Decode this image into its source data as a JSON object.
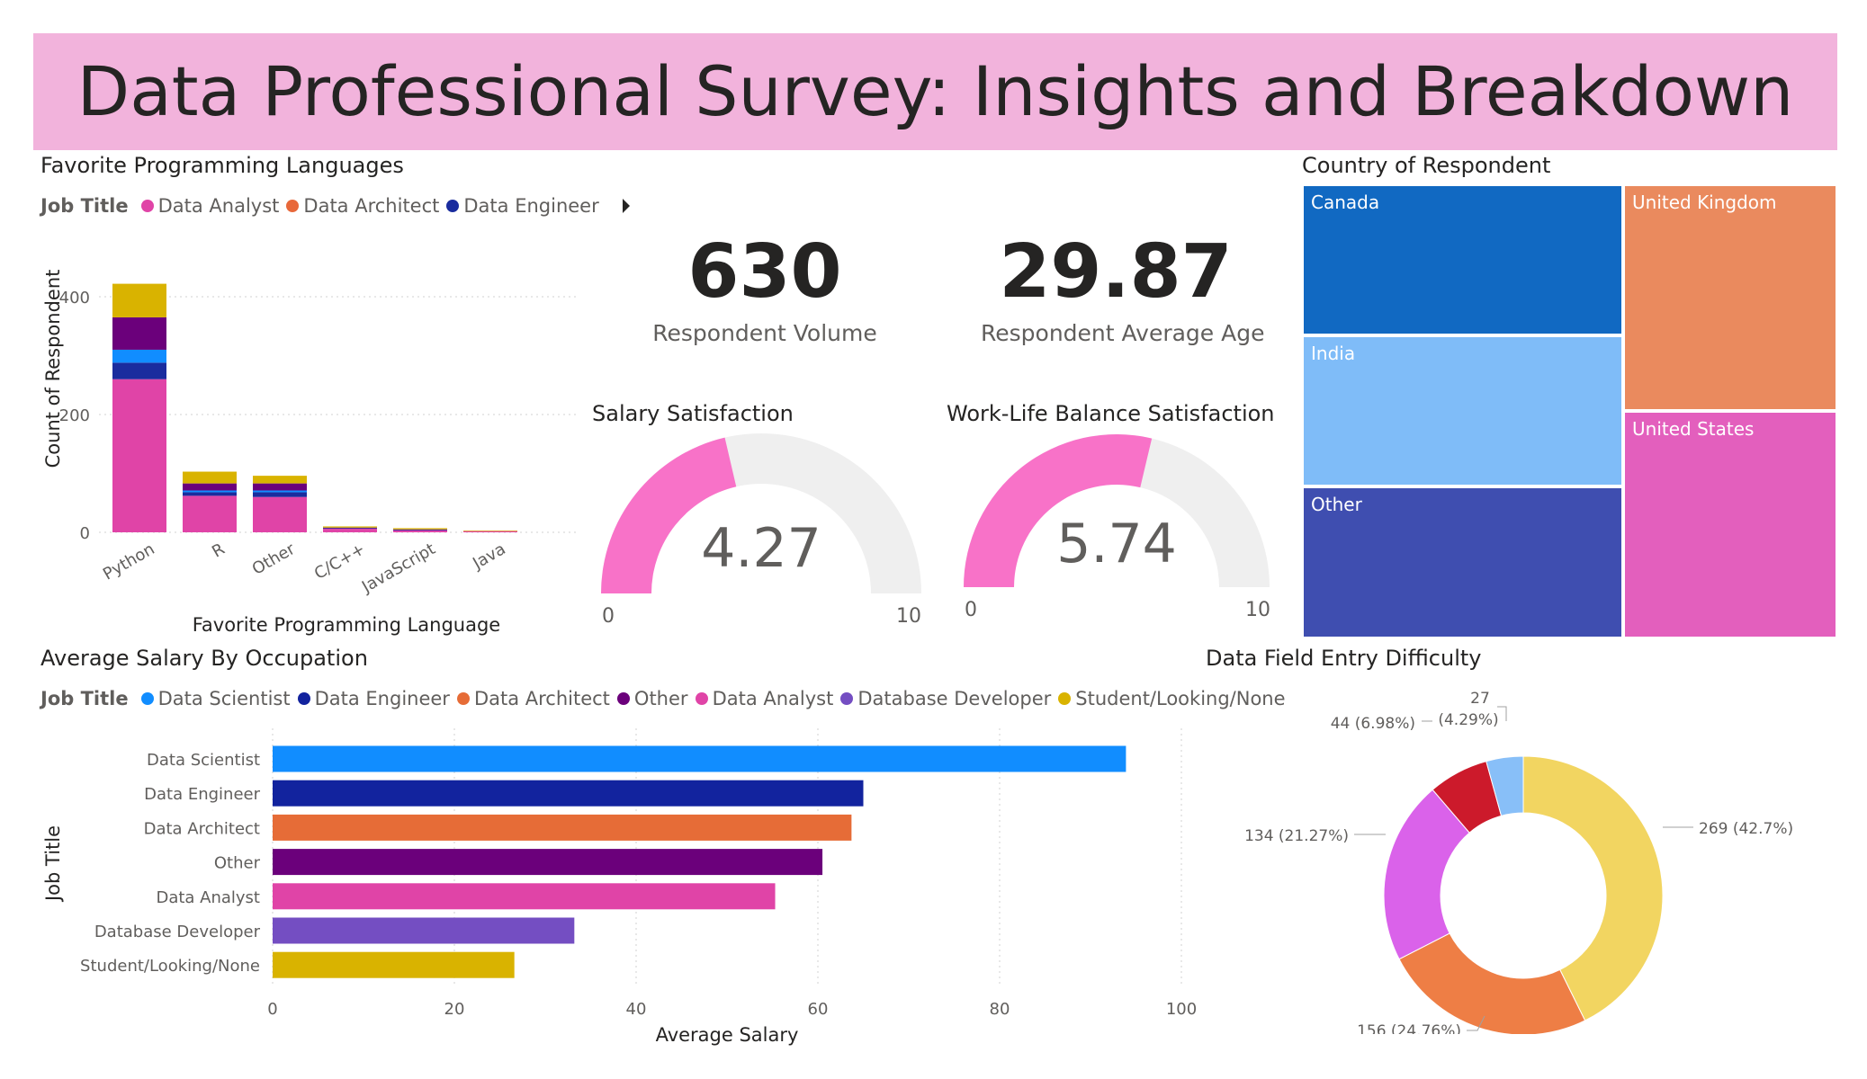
{
  "header": {
    "title": "Data Professional Survey: Insights and Breakdown"
  },
  "languages_visual": {
    "title": "Favorite Programming Languages",
    "legend_title": "Job Title",
    "legend_items": [
      {
        "label": "Data Analyst",
        "color": "#e044a7"
      },
      {
        "label": "Data Architect",
        "color": "#e8683a"
      },
      {
        "label": "Data Engineer",
        "color": "#1a2c9e"
      }
    ]
  },
  "kpis": {
    "volume": {
      "value": "630",
      "label": "Respondent Volume"
    },
    "age": {
      "value": "29.87",
      "label": "Respondent Average Age"
    }
  },
  "gauges": {
    "salary": {
      "title": "Salary Satisfaction",
      "value_text": "4.27",
      "min_text": "0",
      "max_text": "10"
    },
    "worklife": {
      "title": "Work-Life Balance Satisfaction",
      "value_text": "5.74",
      "min_text": "0",
      "max_text": "10"
    }
  },
  "treemap": {
    "title": "Country of Respondent",
    "cells": [
      {
        "label": "Canada",
        "color": "#1169c2"
      },
      {
        "label": "India",
        "color": "#7fbcf8"
      },
      {
        "label": "Other",
        "color": "#3f4eb0"
      },
      {
        "label": "United Kingdom",
        "color": "#ea8a5e"
      },
      {
        "label": "United States",
        "color": "#e35fbd"
      }
    ]
  },
  "salary_visual": {
    "title": "Average Salary By Occupation",
    "legend_title": "Job Title",
    "legend_items": [
      {
        "label": "Data Scientist",
        "color": "#118dff"
      },
      {
        "label": "Data Engineer",
        "color": "#12239e"
      },
      {
        "label": "Data Architect",
        "color": "#e66c37"
      },
      {
        "label": "Other",
        "color": "#6b007b"
      },
      {
        "label": "Data Analyst",
        "color": "#e044a7"
      },
      {
        "label": "Database Developer",
        "color": "#744ec2"
      },
      {
        "label": "Student/Looking/None",
        "color": "#d9b300"
      }
    ]
  },
  "difficulty_visual": {
    "title": "Data Field Entry Difficulty"
  },
  "chart_data": [
    {
      "type": "bar",
      "stacked": true,
      "categories": [
        "Python",
        "R",
        "Other",
        "C/C++",
        "JavaScript",
        "Java"
      ],
      "series": [
        {
          "color": "#e044a7",
          "values": [
            260,
            62,
            60,
            6,
            3,
            2
          ]
        },
        {
          "color": "#1a2c9e",
          "values": [
            28,
            6,
            8,
            1,
            1,
            0
          ]
        },
        {
          "color": "#118dff",
          "values": [
            22,
            3,
            3,
            0,
            0,
            0
          ]
        },
        {
          "color": "#6b007b",
          "values": [
            55,
            12,
            12,
            1,
            1,
            0
          ]
        },
        {
          "color": "#d9b300",
          "values": [
            57,
            20,
            13,
            2,
            2,
            1
          ]
        }
      ],
      "xlabel": "Favorite Programming Language",
      "ylabel": "Count of Respondent",
      "yticks": [
        0,
        200,
        400
      ],
      "ylim": [
        0,
        450
      ],
      "grid": true
    },
    {
      "type": "bar",
      "orientation": "horizontal",
      "categories": [
        "Data Scientist",
        "Data Engineer",
        "Data Architect",
        "Other",
        "Data Analyst",
        "Database Developer",
        "Student/Looking/None"
      ],
      "values": [
        93.9,
        65,
        63.7,
        60.5,
        55.3,
        33.2,
        26.6
      ],
      "colors": [
        "#118dff",
        "#12239e",
        "#e66c37",
        "#6b007b",
        "#e044a7",
        "#744ec2",
        "#d9b300"
      ],
      "xlabel": "Average Salary",
      "ylabel": "Job Title",
      "xticks": [
        0,
        20,
        40,
        60,
        80,
        100
      ],
      "xlim": [
        0,
        100
      ],
      "grid": true
    },
    {
      "type": "pie",
      "donut": true,
      "slices": [
        {
          "label": "269 (42.7%)",
          "value": 269,
          "color": "#f2d561"
        },
        {
          "label": "156 (24.76%)",
          "value": 156,
          "color": "#ee7e45"
        },
        {
          "label": "134 (21.27%)",
          "value": 134,
          "color": "#da62ea"
        },
        {
          "label": "44 (6.98%)",
          "value": 44,
          "color": "#cc1a2b"
        },
        {
          "label": "27 (4.29%)",
          "value": 27,
          "color": "#88bff8"
        }
      ]
    }
  ]
}
